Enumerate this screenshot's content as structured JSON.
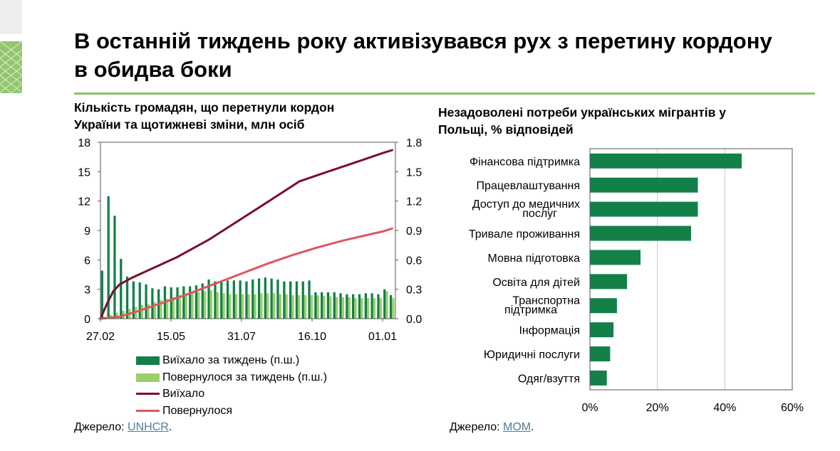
{
  "title": "В останній тиждень року активізувався рух з перетину кордону в обидва боки",
  "colors": {
    "dark_green": "#138049",
    "light_green": "#9acf6a",
    "dark_red": "#7a0e2e",
    "pink": "#e0555f",
    "rule_green": "#8dc06b",
    "link": "#4a7fa0"
  },
  "left_chart": {
    "subtitle_line1": "Кількість громадян, що перетнули кордон",
    "subtitle_line2": "України та щотижневі зміни, млн осіб",
    "source_label": "Джерело: ",
    "source_link": "UNHCR",
    "source_end": ".",
    "legend": [
      {
        "label": "Виїхало за тиждень (п.ш.)",
        "kind": "bar",
        "color": "#138049"
      },
      {
        "label": "Повернулося за тиждень (п.ш.)",
        "kind": "bar",
        "color": "#9acf6a"
      },
      {
        "label": "Виїхало",
        "kind": "line",
        "color": "#7a0e2e"
      },
      {
        "label": "Повернулося",
        "kind": "line",
        "color": "#e0555f"
      }
    ]
  },
  "right_chart": {
    "subtitle_line1": "Незадоволені потреби українських мігрантів у",
    "subtitle_line2": "Польщі, % відповідей",
    "source_label": "Джерело: ",
    "source_link": "МОМ",
    "source_end": "."
  },
  "chart_data": [
    {
      "type": "bar+line",
      "title": "Кількість громадян, що перетнули кордон України та щотижневі зміни, млн осіб",
      "x_tick_labels": [
        "27.02",
        "15.05",
        "31.07",
        "16.10",
        "01.01"
      ],
      "x_tick_weeks": [
        0,
        11,
        22,
        33,
        44
      ],
      "left_axis": {
        "range": [
          0,
          18
        ],
        "ticks": [
          "0",
          "3",
          "6",
          "9",
          "12",
          "15",
          "18"
        ],
        "series": [
          "Виїхало",
          "Повернулося"
        ]
      },
      "right_axis": {
        "range": [
          0,
          1.8
        ],
        "ticks": [
          "0.0",
          "0.3",
          "0.6",
          "0.9",
          "1.2",
          "1.5",
          "1.8"
        ],
        "series": [
          "Виїхало за тиждень (п.ш.)",
          "Повернулося за тиждень (п.ш.)"
        ]
      },
      "series": [
        {
          "name": "Виїхало за тиждень (п.ш.)",
          "type": "bar",
          "axis": "right",
          "values": [
            0.49,
            1.25,
            1.05,
            0.61,
            0.43,
            0.38,
            0.37,
            0.35,
            0.31,
            0.3,
            0.33,
            0.32,
            0.32,
            0.33,
            0.33,
            0.34,
            0.36,
            0.4,
            0.38,
            0.38,
            0.39,
            0.39,
            0.39,
            0.38,
            0.4,
            0.41,
            0.42,
            0.41,
            0.4,
            0.38,
            0.38,
            0.38,
            0.38,
            0.39,
            0.27,
            0.27,
            0.27,
            0.27,
            0.26,
            0.25,
            0.25,
            0.25,
            0.26,
            0.26,
            0.25,
            0.3,
            0.24
          ]
        },
        {
          "name": "Повернулося за тиждень (п.ш.)",
          "type": "bar",
          "axis": "right",
          "values": [
            0.02,
            0.04,
            0.06,
            0.08,
            0.1,
            0.12,
            0.14,
            0.15,
            0.17,
            0.19,
            0.2,
            0.22,
            0.24,
            0.25,
            0.26,
            0.27,
            0.28,
            0.29,
            0.27,
            0.26,
            0.25,
            0.25,
            0.25,
            0.25,
            0.25,
            0.26,
            0.26,
            0.26,
            0.25,
            0.25,
            0.24,
            0.24,
            0.24,
            0.24,
            0.24,
            0.23,
            0.23,
            0.22,
            0.22,
            0.22,
            0.21,
            0.21,
            0.21,
            0.21,
            0.21,
            0.28,
            0.21
          ]
        },
        {
          "name": "Виїхало",
          "type": "line",
          "axis": "left",
          "x": [
            0,
            1,
            2,
            3,
            5,
            8,
            12,
            17,
            22,
            27,
            31,
            35,
            40,
            44,
            45.5
          ],
          "values": [
            0,
            1.5,
            2.8,
            3.5,
            4.2,
            5.1,
            6.3,
            8.1,
            10.2,
            12.3,
            14,
            14.9,
            16,
            16.9,
            17.2
          ]
        },
        {
          "name": "Повернулося",
          "type": "line",
          "axis": "left",
          "x": [
            0,
            3,
            6,
            10,
            14,
            18,
            22,
            26,
            30,
            34,
            38,
            42,
            44,
            45.5
          ],
          "values": [
            0,
            0.2,
            0.8,
            1.7,
            2.6,
            3.6,
            4.6,
            5.6,
            6.5,
            7.3,
            8,
            8.6,
            8.9,
            9.2
          ]
        }
      ]
    },
    {
      "type": "bar",
      "orientation": "horizontal",
      "title": "Незадоволені потреби українських мігрантів у Польщі, % відповідей",
      "categories": [
        "Фінансова підтримка",
        "Працевлаштування",
        "Доступ до медичних послуг",
        "Тривале проживання",
        "Мовна підготовка",
        "Освіта для дітей",
        "Транспортна підтримка",
        "Інформація",
        "Юридичні послуги",
        "Одяг/взуття"
      ],
      "values": [
        45,
        32,
        32,
        30,
        15,
        11,
        8,
        7,
        6,
        5
      ],
      "x_range": [
        0,
        60
      ],
      "x_tick_labels": [
        "0%",
        "20%",
        "40%",
        "60%"
      ],
      "grid": true,
      "color": "#138049"
    }
  ]
}
